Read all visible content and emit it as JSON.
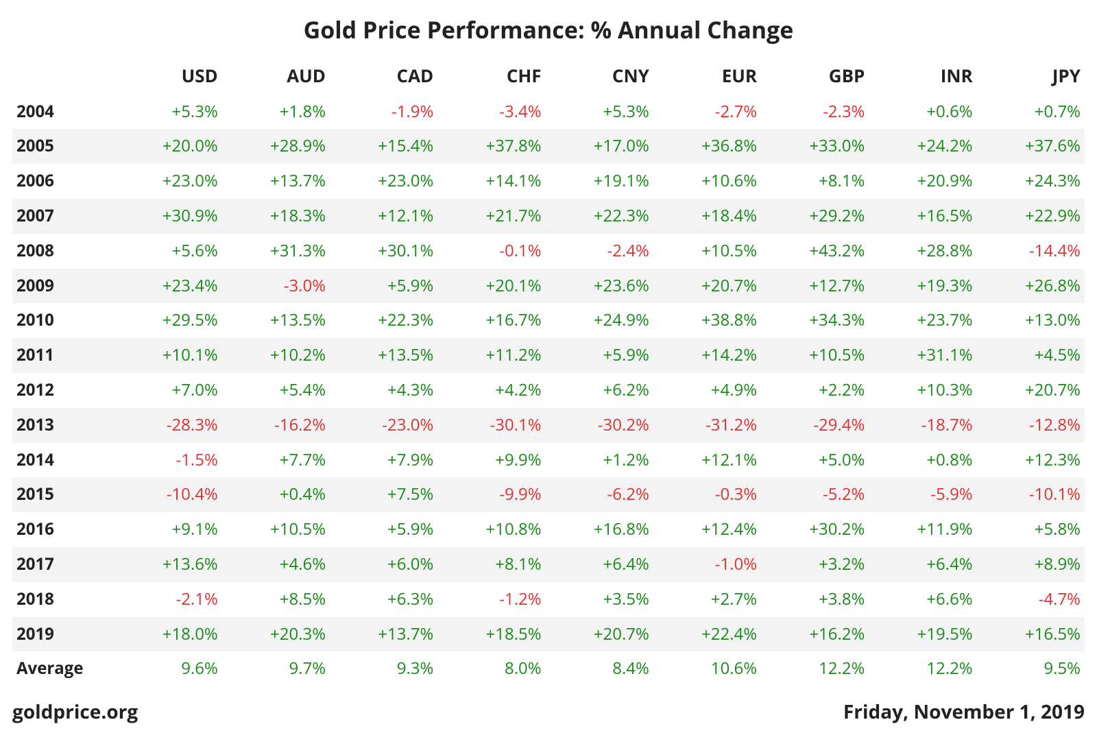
{
  "title": "Gold Price Performance: % Annual Change",
  "colors": {
    "positive": "#1a8a1a",
    "negative": "#e03030",
    "text": "#222222",
    "stripe": "#f3f3f3",
    "background": "#ffffff"
  },
  "table": {
    "type": "table",
    "currencies": [
      "USD",
      "AUD",
      "CAD",
      "CHF",
      "CNY",
      "EUR",
      "GBP",
      "INR",
      "JPY"
    ],
    "years": [
      "2004",
      "2005",
      "2006",
      "2007",
      "2008",
      "2009",
      "2010",
      "2011",
      "2012",
      "2013",
      "2014",
      "2015",
      "2016",
      "2017",
      "2018",
      "2019"
    ],
    "values": [
      [
        5.3,
        1.8,
        -1.9,
        -3.4,
        5.3,
        -2.7,
        -2.3,
        0.6,
        0.7
      ],
      [
        20.0,
        28.9,
        15.4,
        37.8,
        17.0,
        36.8,
        33.0,
        24.2,
        37.6
      ],
      [
        23.0,
        13.7,
        23.0,
        14.1,
        19.1,
        10.6,
        8.1,
        20.9,
        24.3
      ],
      [
        30.9,
        18.3,
        12.1,
        21.7,
        22.3,
        18.4,
        29.2,
        16.5,
        22.9
      ],
      [
        5.6,
        31.3,
        30.1,
        -0.1,
        -2.4,
        10.5,
        43.2,
        28.8,
        -14.4
      ],
      [
        23.4,
        -3.0,
        5.9,
        20.1,
        23.6,
        20.7,
        12.7,
        19.3,
        26.8
      ],
      [
        29.5,
        13.5,
        22.3,
        16.7,
        24.9,
        38.8,
        34.3,
        23.7,
        13.0
      ],
      [
        10.1,
        10.2,
        13.5,
        11.2,
        5.9,
        14.2,
        10.5,
        31.1,
        4.5
      ],
      [
        7.0,
        5.4,
        4.3,
        4.2,
        6.2,
        4.9,
        2.2,
        10.3,
        20.7
      ],
      [
        -28.3,
        -16.2,
        -23.0,
        -30.1,
        -30.2,
        -31.2,
        -29.4,
        -18.7,
        -12.8
      ],
      [
        -1.5,
        7.7,
        7.9,
        9.9,
        1.2,
        12.1,
        5.0,
        0.8,
        12.3
      ],
      [
        -10.4,
        0.4,
        7.5,
        -9.9,
        -6.2,
        -0.3,
        -5.2,
        -5.9,
        -10.1
      ],
      [
        9.1,
        10.5,
        5.9,
        10.8,
        16.8,
        12.4,
        30.2,
        11.9,
        5.8
      ],
      [
        13.6,
        4.6,
        6.0,
        8.1,
        6.4,
        -1.0,
        3.2,
        6.4,
        8.9
      ],
      [
        -2.1,
        8.5,
        6.3,
        -1.2,
        3.5,
        2.7,
        3.8,
        6.6,
        -4.7
      ],
      [
        18.0,
        20.3,
        13.7,
        18.5,
        20.7,
        22.4,
        16.2,
        19.5,
        16.5
      ]
    ],
    "average_label": "Average",
    "averages": [
      9.6,
      9.7,
      9.3,
      8.0,
      8.4,
      10.6,
      12.2,
      12.2,
      9.5
    ]
  },
  "footer": {
    "source": "goldprice.org",
    "date": "Friday, November 1, 2019"
  }
}
